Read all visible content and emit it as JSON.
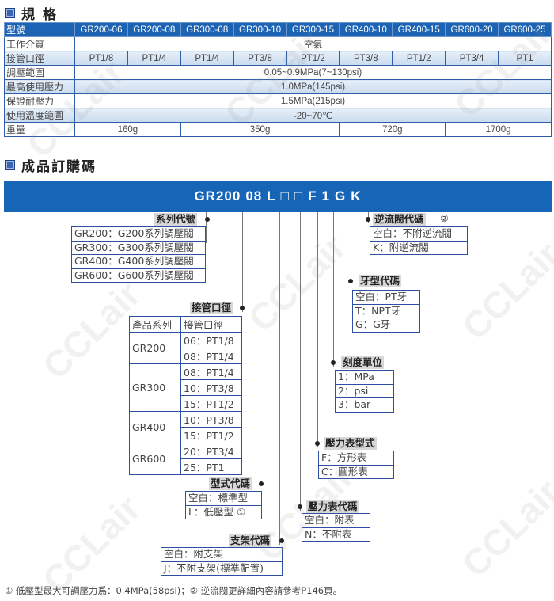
{
  "spec": {
    "title": "規 格",
    "header_label": "型號",
    "models": [
      "GR200-06",
      "GR200-08",
      "GR300-08",
      "GR300-10",
      "GR300-15",
      "GR400-10",
      "GR400-15",
      "GR600-20",
      "GR600-25"
    ],
    "medium": {
      "label": "工作介質",
      "value": "空氣"
    },
    "port": {
      "label": "接管口徑",
      "values": [
        "PT1/8",
        "PT1/4",
        "PT1/4",
        "PT3/8",
        "PT1/2",
        "PT3/8",
        "PT1/2",
        "PT3/4",
        "PT1"
      ]
    },
    "adjust_range": {
      "label": "調壓範圍",
      "value": "0.05~0.9MPa(7~130psi)"
    },
    "max_pressure": {
      "label": "最高使用壓力",
      "value": "1.0MPa(145psi)"
    },
    "proof_pressure": {
      "label": "保證耐壓力",
      "value": "1.5MPa(215psi)"
    },
    "temp_range": {
      "label": "使用溫度範圍",
      "value": "-20~70℃"
    },
    "weight": {
      "label": "重量",
      "values": [
        "160g",
        "350g",
        "720g",
        "1700g"
      ]
    }
  },
  "order": {
    "title": "成品訂購碼",
    "code_parts": [
      "GR200",
      "08",
      "L",
      "□",
      "□",
      "F",
      "1",
      "G",
      "K"
    ],
    "series": {
      "label": "系列代號",
      "items": [
        "GR200：G200系列調壓閥",
        "GR300：G300系列調壓閥",
        "GR400：G400系列調壓閥",
        "GR600：G600系列調壓閥"
      ]
    },
    "check_valve": {
      "label": "逆流閥代碼",
      "note": "②",
      "items": [
        "空白：不附逆流閥",
        "K：附逆流閥"
      ]
    },
    "thread": {
      "label": "牙型代碼",
      "items": [
        "空白：PT牙",
        "T：NPT牙",
        "G：G牙"
      ]
    },
    "pipe": {
      "label": "接管口徑",
      "headers": [
        "產品系列",
        "接管口徑"
      ],
      "groups": [
        {
          "series": "GR200",
          "sizes": [
            "06：PT1/8",
            "08：PT1/4"
          ]
        },
        {
          "series": "GR300",
          "sizes": [
            "08：PT1/4",
            "10：PT3/8",
            "15：PT1/2"
          ]
        },
        {
          "series": "GR400",
          "sizes": [
            "10：PT3/8",
            "15：PT1/2"
          ]
        },
        {
          "series": "GR600",
          "sizes": [
            "20：PT3/4",
            "25：PT1"
          ]
        }
      ]
    },
    "unit": {
      "label": "刻度單位",
      "items": [
        "1：MPa",
        "2：psi",
        "3：bar"
      ]
    },
    "gauge_type": {
      "label": "壓力表型式",
      "items": [
        "F：方形表",
        "C：圓形表"
      ]
    },
    "type": {
      "label": "型式代碼",
      "items": [
        "空白：標準型",
        "L：低壓型 ①"
      ]
    },
    "gauge": {
      "label": "壓力表代碼",
      "items": [
        "空白：附表",
        "N：不附表"
      ]
    },
    "bracket": {
      "label": "支架代碼",
      "items": [
        "空白：附支架",
        "J：不附支架(標準配置)"
      ]
    }
  },
  "footnote": "① 低壓型最大可調壓力爲：0.4MPa(58psi)；② 逆流閥更詳細內容請參考P146頁。",
  "watermark": "CCLair",
  "colors": {
    "header_blue": "#1d63b3",
    "border_blue": "#2f4fa0"
  }
}
